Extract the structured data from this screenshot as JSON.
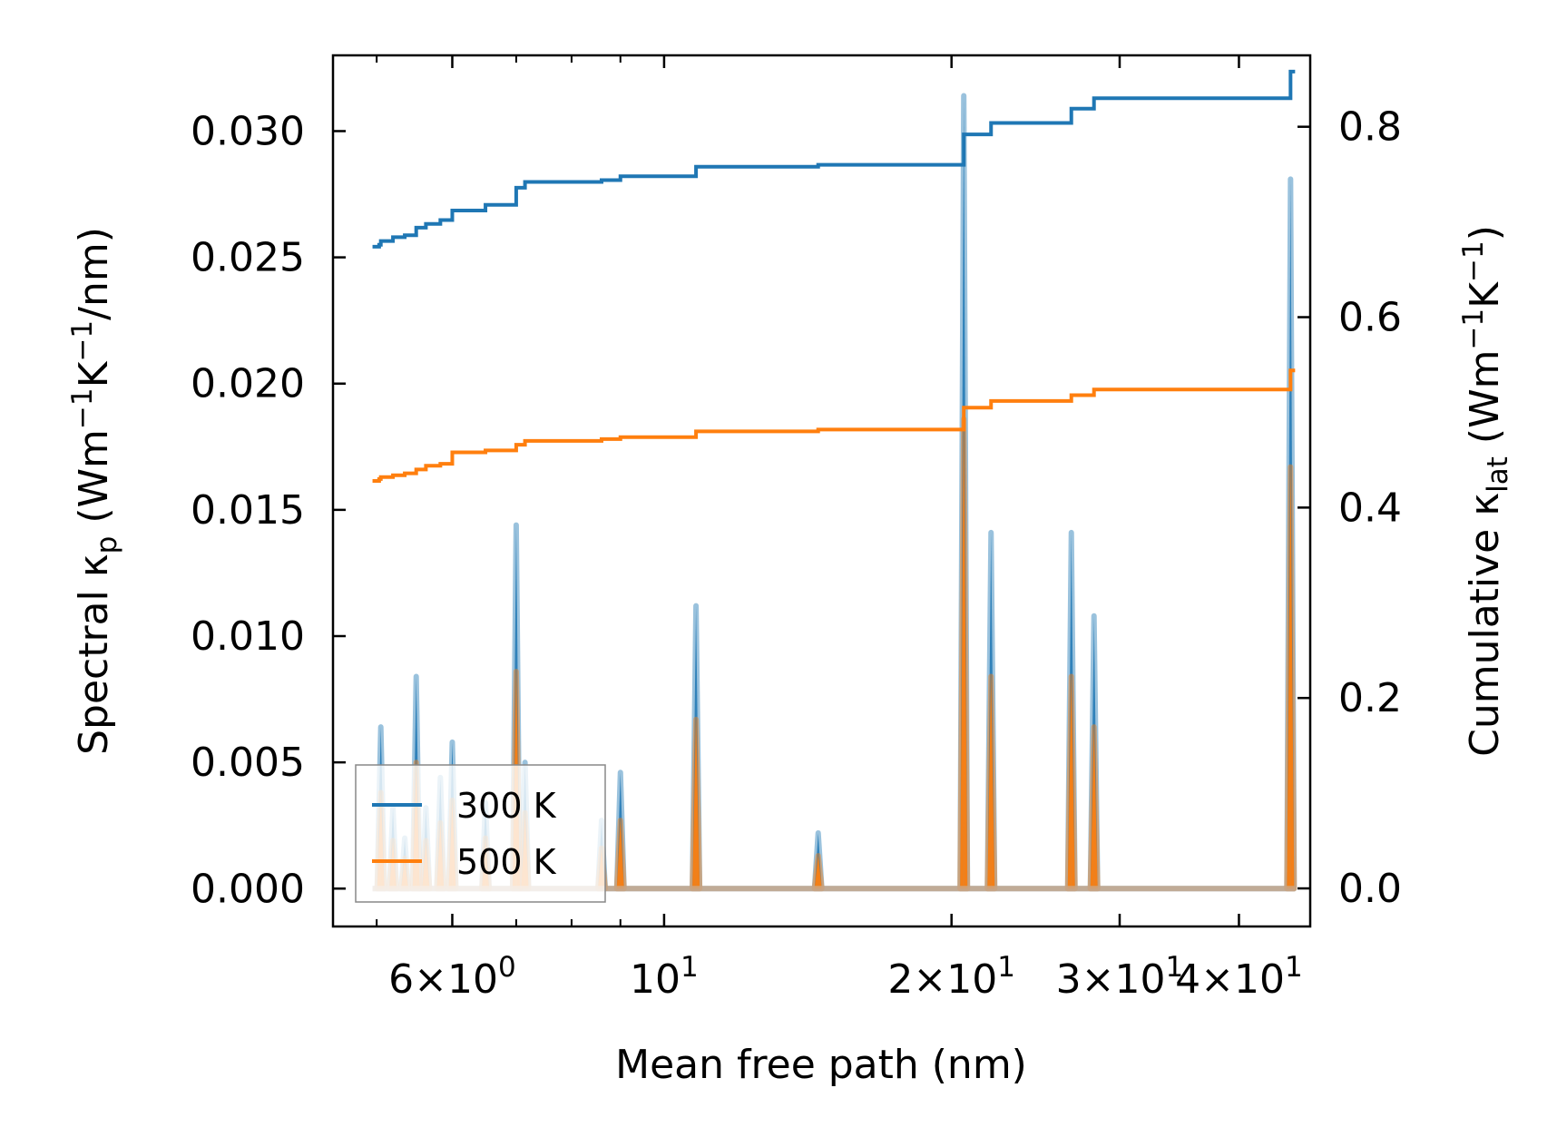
{
  "chart_data": {
    "type": "line",
    "title": "",
    "xlabel": "Mean free path (nm)",
    "ylabel_left": "Spectral κ",
    "ylabel_left_sub": "p",
    "ylabel_left_units": " (Wm",
    "ylabel_left_units_exp1": "−1",
    "ylabel_left_units_mid": "K",
    "ylabel_left_units_exp2": "−1",
    "ylabel_left_units_end": "/nm)",
    "ylabel_right": "Cumulative κ",
    "ylabel_right_sub": "lat",
    "ylabel_right_units": " (Wm",
    "ylabel_right_units_exp1": "−1",
    "ylabel_right_units_mid": "K",
    "ylabel_right_units_exp2": "−1",
    "ylabel_right_units_end": ")",
    "x_scale": "log",
    "xlim": [
      4.5,
      47.5
    ],
    "ylim_left": [
      -0.0015,
      0.033
    ],
    "ylim_right": [
      -0.04,
      0.875
    ],
    "x_major_ticks": [
      {
        "value": 6,
        "mantissa": "6",
        "times": "×",
        "base": "10",
        "exp": "0"
      },
      {
        "value": 10,
        "mantissa": "",
        "times": "",
        "base": "10",
        "exp": "1"
      },
      {
        "value": 20,
        "mantissa": "2",
        "times": "×",
        "base": "10",
        "exp": "1"
      },
      {
        "value": 30,
        "mantissa": "3",
        "times": "×",
        "base": "10",
        "exp": "1"
      },
      {
        "value": 40,
        "mantissa": "4",
        "times": "×",
        "base": "10",
        "exp": "1"
      }
    ],
    "x_minor_ticks": [
      5,
      7,
      8,
      9
    ],
    "y_left_ticks": [
      "0.000",
      "0.005",
      "0.010",
      "0.015",
      "0.020",
      "0.025",
      "0.030"
    ],
    "y_left_tick_values": [
      0.0,
      0.005,
      0.01,
      0.015,
      0.02,
      0.025,
      0.03
    ],
    "y_right_ticks": [
      "0.0",
      "0.2",
      "0.4",
      "0.6",
      "0.8"
    ],
    "y_right_tick_values": [
      0.0,
      0.2,
      0.4,
      0.6,
      0.8
    ],
    "legend_position": "lower-left",
    "spectral_series": [
      {
        "name": "300 K",
        "color": "#1f77b4",
        "peaks": [
          {
            "x": 5.05,
            "y": 0.0064
          },
          {
            "x": 5.2,
            "y": 0.0032
          },
          {
            "x": 5.35,
            "y": 0.002
          },
          {
            "x": 5.5,
            "y": 0.0084
          },
          {
            "x": 5.63,
            "y": 0.0032
          },
          {
            "x": 5.83,
            "y": 0.0044
          },
          {
            "x": 6.0,
            "y": 0.0058
          },
          {
            "x": 6.5,
            "y": 0.0034
          },
          {
            "x": 7.0,
            "y": 0.0144
          },
          {
            "x": 7.15,
            "y": 0.005
          },
          {
            "x": 8.6,
            "y": 0.0027
          },
          {
            "x": 9.0,
            "y": 0.0046
          },
          {
            "x": 10.8,
            "y": 0.0112
          },
          {
            "x": 14.5,
            "y": 0.0022
          },
          {
            "x": 20.6,
            "y": 0.0314
          },
          {
            "x": 22.0,
            "y": 0.0141
          },
          {
            "x": 26.7,
            "y": 0.0141
          },
          {
            "x": 28.2,
            "y": 0.0108
          },
          {
            "x": 45.3,
            "y": 0.0281
          }
        ]
      },
      {
        "name": "500 K",
        "color": "#ff7f0e",
        "peaks": [
          {
            "x": 5.05,
            "y": 0.0038
          },
          {
            "x": 5.2,
            "y": 0.0019
          },
          {
            "x": 5.35,
            "y": 0.0012
          },
          {
            "x": 5.5,
            "y": 0.005
          },
          {
            "x": 5.63,
            "y": 0.0019
          },
          {
            "x": 5.83,
            "y": 0.0026
          },
          {
            "x": 6.0,
            "y": 0.0035
          },
          {
            "x": 6.5,
            "y": 0.002
          },
          {
            "x": 7.0,
            "y": 0.0086
          },
          {
            "x": 7.15,
            "y": 0.003
          },
          {
            "x": 8.6,
            "y": 0.0016
          },
          {
            "x": 9.0,
            "y": 0.0027
          },
          {
            "x": 10.8,
            "y": 0.0067
          },
          {
            "x": 14.5,
            "y": 0.0013
          },
          {
            "x": 20.6,
            "y": 0.0186
          },
          {
            "x": 22.0,
            "y": 0.0084
          },
          {
            "x": 26.7,
            "y": 0.0084
          },
          {
            "x": 28.2,
            "y": 0.0064
          },
          {
            "x": 45.3,
            "y": 0.0167
          }
        ]
      }
    ],
    "cumulative_series": [
      {
        "name": "300 K",
        "color": "#1f77b4",
        "points": [
          [
            4.95,
            0.674
          ],
          [
            5.03,
            0.676
          ],
          [
            5.05,
            0.68
          ],
          [
            5.2,
            0.684
          ],
          [
            5.35,
            0.686
          ],
          [
            5.5,
            0.694
          ],
          [
            5.63,
            0.698
          ],
          [
            5.83,
            0.702
          ],
          [
            6.0,
            0.712
          ],
          [
            6.5,
            0.718
          ],
          [
            7.0,
            0.736
          ],
          [
            7.15,
            0.742
          ],
          [
            8.6,
            0.744
          ],
          [
            9.0,
            0.748
          ],
          [
            10.8,
            0.758
          ],
          [
            14.5,
            0.76
          ],
          [
            20.6,
            0.792
          ],
          [
            22.0,
            0.804
          ],
          [
            26.7,
            0.819
          ],
          [
            28.2,
            0.83
          ],
          [
            45.3,
            0.858
          ],
          [
            45.8,
            0.858
          ]
        ]
      },
      {
        "name": "500 K",
        "color": "#ff7f0e",
        "points": [
          [
            4.95,
            0.428
          ],
          [
            5.03,
            0.43
          ],
          [
            5.05,
            0.432
          ],
          [
            5.2,
            0.434
          ],
          [
            5.35,
            0.436
          ],
          [
            5.5,
            0.44
          ],
          [
            5.63,
            0.444
          ],
          [
            5.83,
            0.446
          ],
          [
            6.0,
            0.458
          ],
          [
            6.5,
            0.46
          ],
          [
            7.0,
            0.466
          ],
          [
            7.15,
            0.47
          ],
          [
            8.6,
            0.472
          ],
          [
            9.0,
            0.474
          ],
          [
            10.8,
            0.48
          ],
          [
            14.5,
            0.482
          ],
          [
            20.6,
            0.505
          ],
          [
            22.0,
            0.512
          ],
          [
            26.7,
            0.518
          ],
          [
            28.2,
            0.524
          ],
          [
            45.3,
            0.544
          ],
          [
            45.8,
            0.544
          ]
        ]
      }
    ]
  }
}
